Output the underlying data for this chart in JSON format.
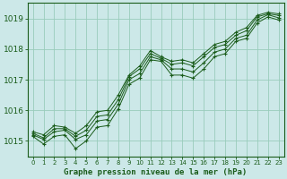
{
  "title": "Graphe pression niveau de la mer (hPa)",
  "bg_color": "#cce8e8",
  "grid_color": "#99ccbb",
  "line_color": "#1a5c1a",
  "xlim": [
    -0.5,
    23.5
  ],
  "ylim": [
    1014.5,
    1019.5
  ],
  "yticks": [
    1015,
    1016,
    1017,
    1018,
    1019
  ],
  "xticks": [
    0,
    1,
    2,
    3,
    4,
    5,
    6,
    7,
    8,
    9,
    10,
    11,
    12,
    13,
    14,
    15,
    16,
    17,
    18,
    19,
    20,
    21,
    22,
    23
  ],
  "series": [
    [
      1015.15,
      1014.9,
      1015.15,
      1015.2,
      1014.75,
      1015.0,
      1015.45,
      1015.5,
      1016.05,
      1016.85,
      1017.05,
      1017.65,
      1017.6,
      1017.15,
      1017.15,
      1017.05,
      1017.35,
      1017.75,
      1017.85,
      1018.25,
      1018.35,
      1018.85,
      1019.05,
      1018.95
    ],
    [
      1015.2,
      1015.05,
      1015.3,
      1015.35,
      1015.05,
      1015.2,
      1015.65,
      1015.7,
      1016.2,
      1017.0,
      1017.2,
      1017.75,
      1017.65,
      1017.35,
      1017.35,
      1017.25,
      1017.55,
      1017.9,
      1018.0,
      1018.35,
      1018.45,
      1018.95,
      1019.12,
      1019.02
    ],
    [
      1015.25,
      1015.1,
      1015.4,
      1015.4,
      1015.15,
      1015.35,
      1015.8,
      1015.85,
      1016.35,
      1017.1,
      1017.35,
      1017.85,
      1017.7,
      1017.5,
      1017.55,
      1017.45,
      1017.75,
      1018.05,
      1018.15,
      1018.45,
      1018.6,
      1019.05,
      1019.15,
      1019.1
    ],
    [
      1015.3,
      1015.2,
      1015.5,
      1015.45,
      1015.25,
      1015.5,
      1015.95,
      1016.0,
      1016.5,
      1017.15,
      1017.45,
      1017.95,
      1017.75,
      1017.6,
      1017.65,
      1017.55,
      1017.85,
      1018.15,
      1018.25,
      1018.55,
      1018.7,
      1019.1,
      1019.2,
      1019.15
    ]
  ]
}
